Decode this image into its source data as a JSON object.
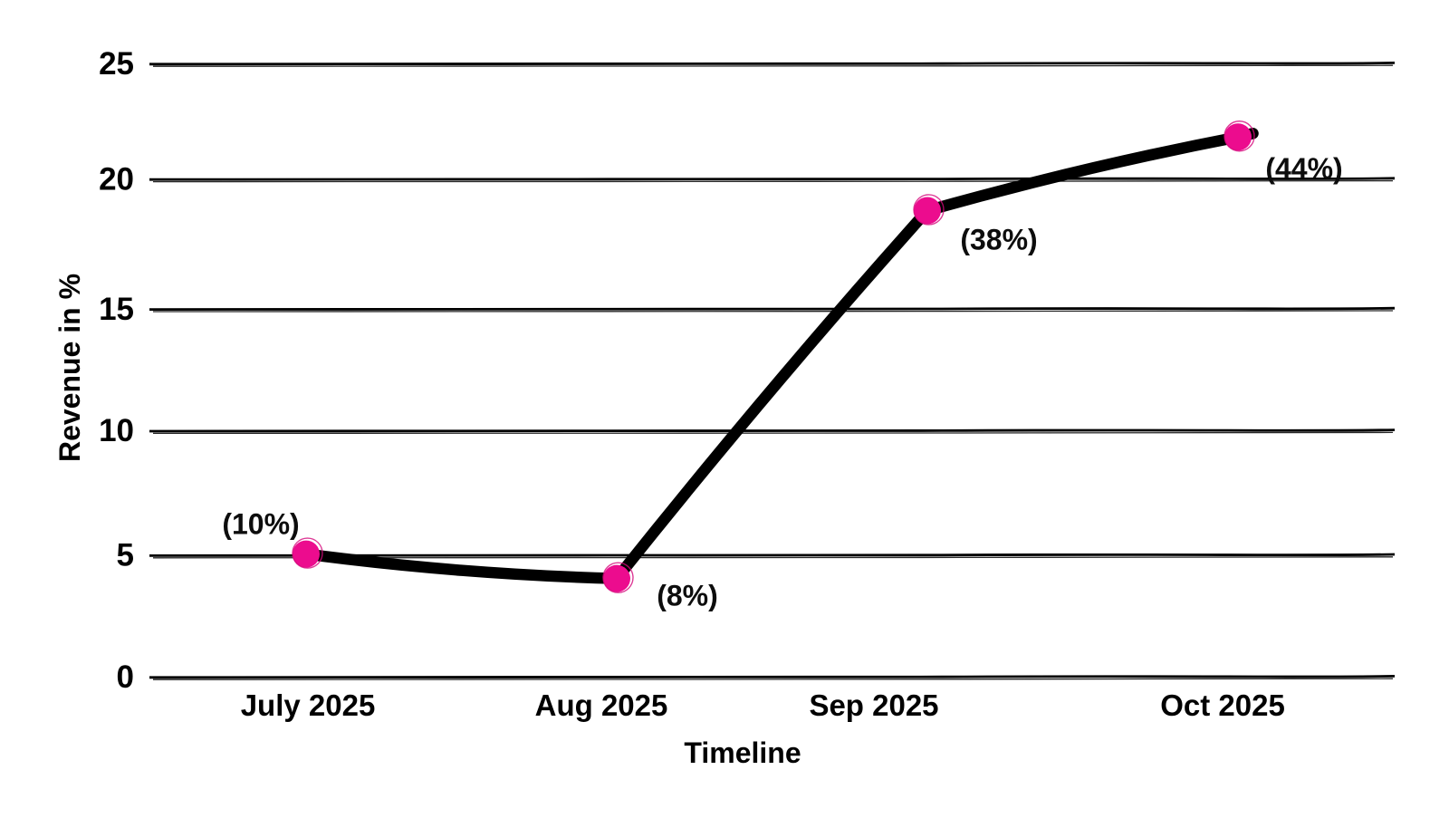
{
  "chart_data": {
    "type": "line",
    "title": "",
    "xlabel": "Timeline",
    "ylabel": "Revenue in %",
    "categories": [
      "July 2025",
      "Aug 2025",
      "Sep 2025",
      "Oct 2025"
    ],
    "values": [
      5,
      4,
      19,
      22
    ],
    "point_labels": [
      "(10%)",
      "(8%)",
      "(38%)",
      "(44%)"
    ],
    "yticks": [
      0,
      5,
      10,
      15,
      20,
      25
    ],
    "ylim": [
      0,
      25
    ],
    "grid": "horizontal-only",
    "legend": "none",
    "line_color": "#000000",
    "point_color": "#EC0C8E",
    "point_outline_color": "#D5097C",
    "text_color": "#000000",
    "background": "#ffffff"
  }
}
